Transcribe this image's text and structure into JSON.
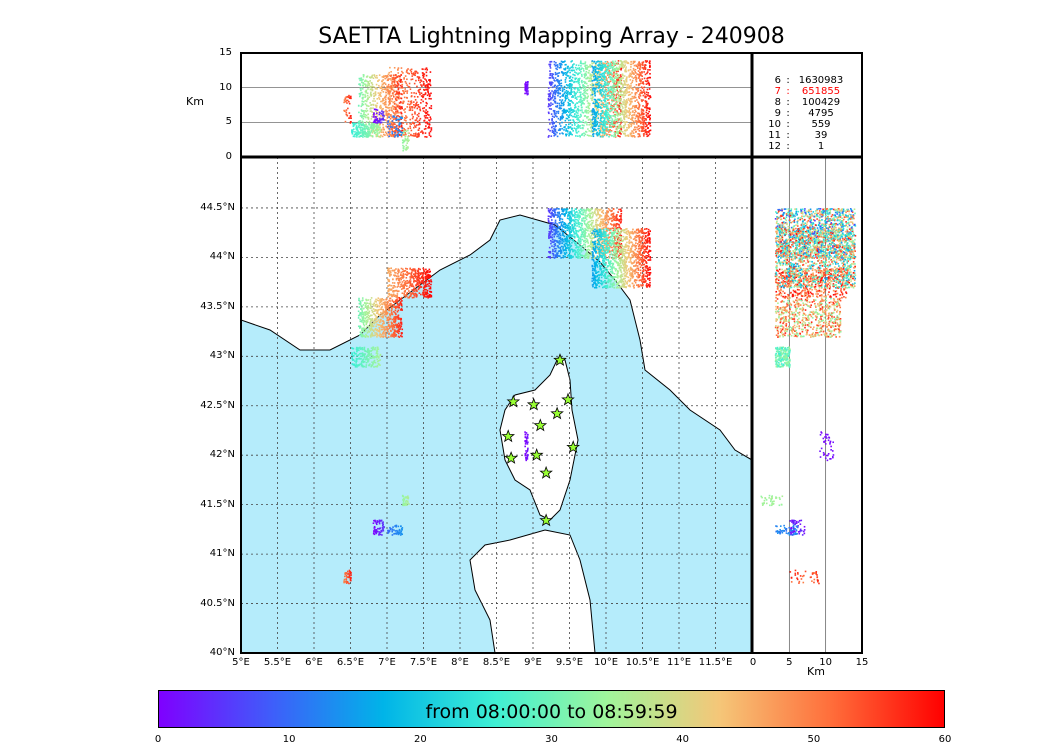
{
  "title": "SAETTA Lightning Mapping Array - 240908",
  "legend": [
    {
      "k": "6",
      "v": "1630983",
      "color": "#000000"
    },
    {
      "k": "7",
      "v": "651855",
      "color": "#ff0000"
    },
    {
      "k": "8",
      "v": "100429",
      "color": "#000000"
    },
    {
      "k": "9",
      "v": "4795",
      "color": "#000000"
    },
    {
      "k": "10",
      "v": "559",
      "color": "#000000"
    },
    {
      "k": "11",
      "v": "39",
      "color": "#000000"
    },
    {
      "k": "12",
      "v": "1",
      "color": "#000000"
    }
  ],
  "colorbar": {
    "label": "from 08:00:00 to 08:59:59",
    "ticks": [
      "0",
      "10",
      "20",
      "30",
      "40",
      "50",
      "60"
    ],
    "range": [
      0,
      60
    ]
  },
  "chart_data": {
    "type": "scatter",
    "title": "SAETTA Lightning Mapping Array - 240908",
    "map": {
      "lon_range": [
        5,
        12
      ],
      "lat_range": [
        40,
        45
      ],
      "lon_ticks": [
        "5°E",
        "5.5°E",
        "6°E",
        "6.5°E",
        "7°E",
        "7.5°E",
        "8°E",
        "8.5°E",
        "9°E",
        "9.5°E",
        "10°E",
        "10.5°E",
        "11°E",
        "11.5°E"
      ],
      "lat_ticks": [
        "40°N",
        "40.5°N",
        "41°N",
        "41.5°N",
        "42°N",
        "42.5°N",
        "43°N",
        "43.5°N",
        "44°N",
        "44.5°N"
      ],
      "sea_color": "#b5ecfb"
    },
    "top_panel": {
      "ylabel": "Km",
      "yticks": [
        "0",
        "5",
        "10",
        "15"
      ],
      "ylim": [
        0,
        15
      ]
    },
    "side_panel": {
      "xlabel": "Km",
      "xticks": [
        "0",
        "5",
        "10",
        "15"
      ],
      "xlim": [
        0,
        15
      ]
    },
    "stations": [
      [
        9.37,
        42.96
      ],
      [
        8.73,
        42.54
      ],
      [
        9.01,
        42.51
      ],
      [
        9.48,
        42.56
      ],
      [
        9.33,
        42.42
      ],
      [
        9.1,
        42.3
      ],
      [
        8.66,
        42.19
      ],
      [
        9.55,
        42.08
      ],
      [
        8.7,
        41.97
      ],
      [
        9.05,
        42.0
      ],
      [
        9.18,
        41.82
      ],
      [
        9.18,
        41.34
      ]
    ],
    "clusters": [
      {
        "lon": [
          7.0,
          7.6
        ],
        "lat": [
          43.6,
          43.9
        ],
        "t": [
          45,
          60
        ],
        "alt": [
          3,
          13
        ]
      },
      {
        "lon": [
          6.6,
          7.2
        ],
        "lat": [
          43.2,
          43.6
        ],
        "t": [
          30,
          58
        ],
        "alt": [
          3,
          12
        ]
      },
      {
        "lon": [
          6.5,
          6.9
        ],
        "lat": [
          42.9,
          43.1
        ],
        "t": [
          25,
          35
        ],
        "alt": [
          3,
          5
        ]
      },
      {
        "lon": [
          9.2,
          10.2
        ],
        "lat": [
          44.0,
          44.5
        ],
        "t": [
          5,
          58
        ],
        "alt": [
          3,
          14
        ]
      },
      {
        "lon": [
          9.8,
          10.6
        ],
        "lat": [
          43.7,
          44.3
        ],
        "t": [
          15,
          60
        ],
        "alt": [
          3,
          14
        ]
      },
      {
        "lon": [
          6.8,
          6.95
        ],
        "lat": [
          41.2,
          41.35
        ],
        "t": [
          0,
          5
        ],
        "alt": [
          5,
          7
        ]
      },
      {
        "lon": [
          7.2,
          7.3
        ],
        "lat": [
          41.5,
          41.6
        ],
        "t": [
          33,
          36
        ],
        "alt": [
          1,
          4
        ]
      },
      {
        "lon": [
          7.0,
          7.2
        ],
        "lat": [
          41.2,
          41.3
        ],
        "t": [
          10,
          14
        ],
        "alt": [
          3,
          6
        ]
      },
      {
        "lon": [
          6.4,
          6.5
        ],
        "lat": [
          40.7,
          40.85
        ],
        "t": [
          50,
          58
        ],
        "alt": [
          5,
          9
        ]
      },
      {
        "lon": [
          8.88,
          8.92
        ],
        "lat": [
          41.95,
          42.25
        ],
        "t": [
          0,
          2
        ],
        "alt": [
          9,
          11
        ]
      }
    ]
  }
}
